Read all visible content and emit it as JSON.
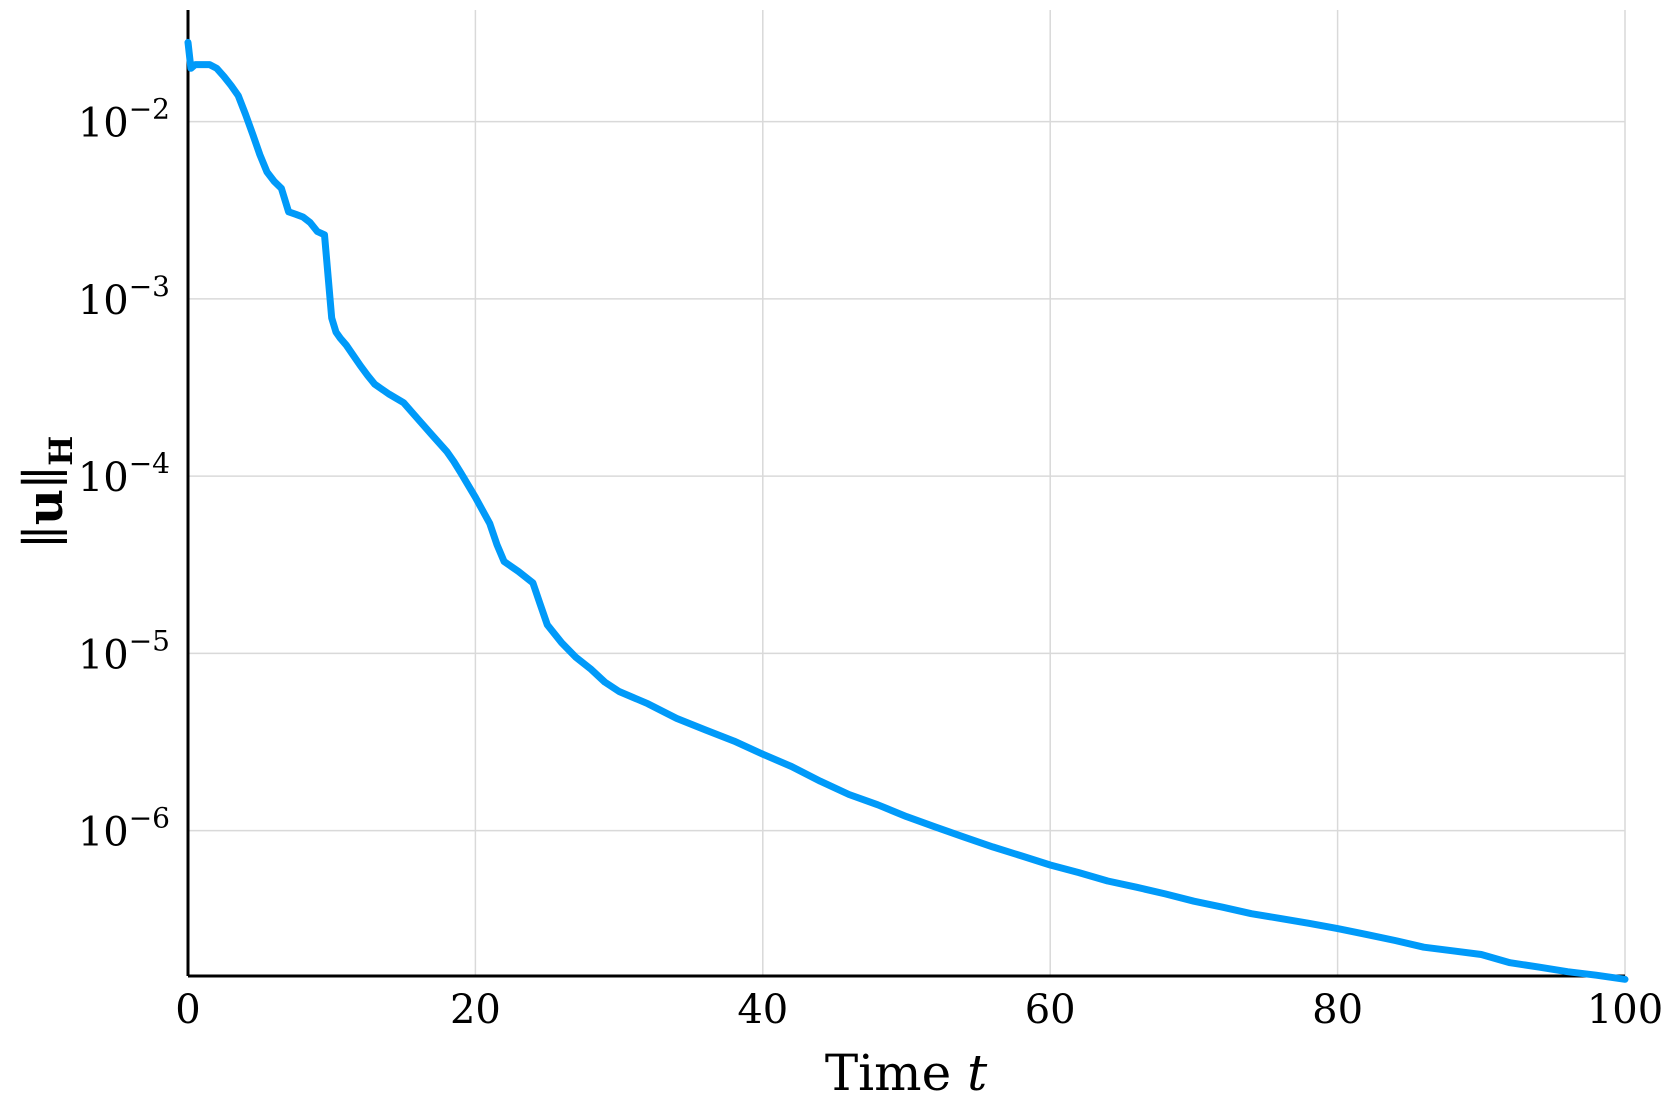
{
  "chart_data": {
    "type": "line",
    "title": "",
    "xlabel": {
      "text": "Time ",
      "var": "t"
    },
    "ylabel": {
      "bars_open": "∥",
      "vec": "u",
      "bars_close": "∥",
      "sub": "H"
    },
    "xscale": "linear",
    "yscale": "log",
    "xlim": [
      0,
      100
    ],
    "ylim_log10": [
      -6.82,
      -1.37
    ],
    "grid": true,
    "legend": "none",
    "line_color": "#009af9",
    "x_ticks": [
      {
        "value": 0,
        "label": "0"
      },
      {
        "value": 20,
        "label": "20"
      },
      {
        "value": 40,
        "label": "40"
      },
      {
        "value": 60,
        "label": "60"
      },
      {
        "value": 80,
        "label": "80"
      },
      {
        "value": 100,
        "label": "100"
      }
    ],
    "y_ticks": [
      {
        "value": 0.01,
        "base": "10",
        "exp": "−2"
      },
      {
        "value": 0.001,
        "base": "10",
        "exp": "−3"
      },
      {
        "value": 0.0001,
        "base": "10",
        "exp": "−4"
      },
      {
        "value": 1e-05,
        "base": "10",
        "exp": "−5"
      },
      {
        "value": 1e-06,
        "base": "10",
        "exp": "−6"
      }
    ],
    "series": [
      {
        "x": [
          0,
          0.2,
          0.5,
          1.0,
          1.5,
          2.0,
          2.5,
          3.0,
          3.5,
          4.0,
          4.5,
          5.0,
          5.5,
          6.0,
          6.5,
          7.0,
          7.5,
          8.0,
          8.5,
          9.0,
          9.5,
          10.0,
          10.3,
          10.6,
          11.0,
          11.5,
          12.0,
          12.5,
          13.0,
          14.0,
          15.0,
          16.0,
          17.0,
          18.0,
          18.5,
          19.0,
          20.0,
          21.0,
          21.5,
          22.0,
          23.0,
          24.0,
          24.5,
          25.0,
          26.0,
          27.0,
          28.0,
          29.0,
          30.0,
          32.0,
          34.0,
          36.0,
          38.0,
          40.0,
          42.0,
          44.0,
          46.0,
          48.0,
          50.0,
          52.0,
          54.0,
          56.0,
          58.0,
          60.0,
          62.0,
          64.0,
          66.0,
          68.0,
          70.0,
          72.0,
          74.0,
          76.0,
          78.0,
          80.0,
          82.0,
          84.0,
          86.0,
          88.0,
          90.0,
          92.0,
          94.0,
          96.0,
          98.0,
          100.0
        ],
        "y": [
          0.028,
          0.02,
          0.021,
          0.021,
          0.021,
          0.02,
          0.018,
          0.016,
          0.014,
          0.011,
          0.0085,
          0.0065,
          0.0052,
          0.0046,
          0.0042,
          0.0031,
          0.003,
          0.0029,
          0.0027,
          0.0024,
          0.0023,
          0.00078,
          0.00065,
          0.0006,
          0.00055,
          0.00048,
          0.00042,
          0.00037,
          0.00033,
          0.00029,
          0.00026,
          0.00021,
          0.00017,
          0.000138,
          0.000121,
          0.000104,
          7.6e-05,
          5.4e-05,
          4.1e-05,
          3.3e-05,
          2.9e-05,
          2.5e-05,
          1.9e-05,
          1.45e-05,
          1.15e-05,
          9.5e-06,
          8.2e-06,
          6.9e-06,
          6.1e-06,
          5.2e-06,
          4.3e-06,
          3.7e-06,
          3.2e-06,
          2.7e-06,
          2.3e-06,
          1.9e-06,
          1.6e-06,
          1.4e-06,
          1.2e-06,
          1.05e-06,
          9.2e-07,
          8.1e-07,
          7.2e-07,
          6.4e-07,
          5.8e-07,
          5.2e-07,
          4.8e-07,
          4.4e-07,
          4e-07,
          3.7e-07,
          3.4e-07,
          3.2e-07,
          3e-07,
          2.8e-07,
          2.6e-07,
          2.4e-07,
          2.2e-07,
          2.1e-07,
          2e-07,
          1.8e-07,
          1.7e-07,
          1.6e-07,
          1.53e-07,
          1.45e-07
        ]
      }
    ]
  }
}
